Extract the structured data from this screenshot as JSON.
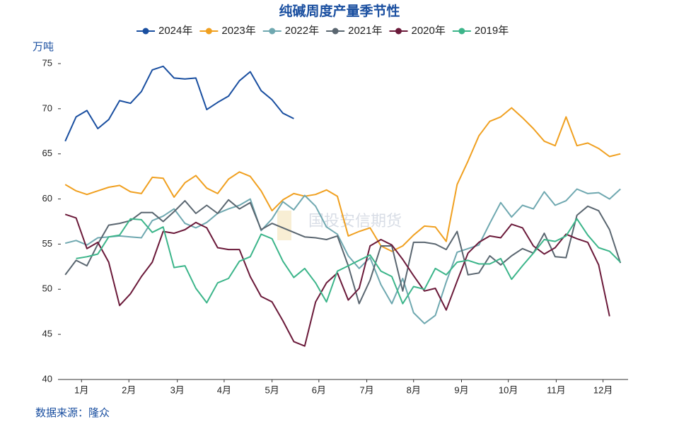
{
  "chart_data": {
    "type": "line",
    "title": "纯碱周度产量季节性",
    "y_label": "万吨",
    "source": "数据来源：隆众",
    "watermark": "国投安信期货",
    "x": [
      1,
      2,
      3,
      4,
      5,
      6,
      7,
      8,
      9,
      10,
      11,
      12,
      13,
      14,
      15,
      16,
      17,
      18,
      19,
      20,
      21,
      22,
      23,
      24,
      25,
      26,
      27,
      28,
      29,
      30,
      31,
      32,
      33,
      34,
      35,
      36,
      37,
      38,
      39,
      40,
      41,
      42,
      43,
      44,
      45,
      46,
      47,
      48,
      49,
      50,
      51,
      52
    ],
    "xlim": [
      0.6,
      52.7
    ],
    "xticks": [
      {
        "value": 2.5,
        "label": "1月"
      },
      {
        "value": 6.85,
        "label": "2月"
      },
      {
        "value": 11.3,
        "label": "3月"
      },
      {
        "value": 15.6,
        "label": "4月"
      },
      {
        "value": 20,
        "label": "5月"
      },
      {
        "value": 24.3,
        "label": "6月"
      },
      {
        "value": 28.7,
        "label": "7月"
      },
      {
        "value": 33,
        "label": "8月"
      },
      {
        "value": 37.4,
        "label": "9月"
      },
      {
        "value": 41.7,
        "label": "10月"
      },
      {
        "value": 46.1,
        "label": "11月"
      },
      {
        "value": 50.4,
        "label": "12月"
      }
    ],
    "ylim": [
      40,
      75
    ],
    "yticks": [
      40,
      45,
      50,
      55,
      60,
      65,
      70,
      75
    ],
    "legend": "top",
    "series": [
      {
        "name": "2024年",
        "color": "#1a4fa0",
        "values": [
          66.4,
          69.1,
          69.8,
          67.8,
          68.8,
          70.9,
          70.6,
          71.9,
          74.3,
          74.7,
          73.4,
          73.3,
          73.4,
          69.9,
          70.7,
          71.4,
          73.1,
          74.1,
          72.0,
          71.0,
          69.5,
          68.9,
          null,
          null,
          null,
          null,
          null,
          null,
          null,
          null,
          null,
          null,
          null,
          null,
          null,
          null,
          null,
          null,
          null,
          null,
          null,
          null,
          null,
          null,
          null,
          null,
          null,
          null,
          null,
          null,
          null,
          null
        ]
      },
      {
        "name": "2023年",
        "color": "#f0a020",
        "values": [
          61.6,
          60.9,
          60.5,
          60.9,
          61.3,
          61.5,
          60.8,
          60.6,
          62.4,
          62.3,
          60.2,
          61.8,
          62.6,
          61.2,
          60.6,
          62.2,
          63.0,
          62.5,
          60.9,
          58.7,
          59.9,
          60.6,
          60.3,
          60.5,
          61.0,
          60.3,
          55.9,
          56.4,
          56.8,
          54.8,
          54.2,
          54.8,
          56.0,
          57.0,
          56.9,
          55.3,
          61.6,
          64.2,
          67.0,
          68.6,
          69.1,
          70.1,
          69.0,
          67.8,
          66.4,
          65.9,
          69.1,
          65.9,
          66.2,
          65.6,
          64.7,
          65.0
        ]
      },
      {
        "name": "2022年",
        "color": "#6fa8b0",
        "values": [
          55.1,
          55.4,
          54.9,
          55.7,
          55.8,
          55.9,
          55.8,
          55.7,
          57.6,
          58.1,
          58.9,
          57.3,
          56.8,
          57.4,
          58.4,
          58.9,
          59.3,
          60.0,
          56.5,
          57.8,
          59.7,
          58.8,
          60.4,
          59.2,
          56.9,
          56.1,
          53.7,
          52.3,
          53.5,
          50.5,
          48.4,
          51.2,
          47.4,
          46.2,
          47.1,
          50.8,
          54.1,
          54.5,
          54.9,
          57.3,
          59.6,
          58.0,
          59.3,
          58.9,
          60.8,
          59.3,
          59.8,
          61.1,
          60.6,
          60.7,
          60.0,
          61.1
        ]
      },
      {
        "name": "2021年",
        "color": "#5a6670",
        "values": [
          51.6,
          53.2,
          52.6,
          55.0,
          57.1,
          57.3,
          57.6,
          58.5,
          58.5,
          57.5,
          58.6,
          59.8,
          58.4,
          59.3,
          58.4,
          59.9,
          58.9,
          59.6,
          56.6,
          57.3,
          56.8,
          56.3,
          55.8,
          55.7,
          55.5,
          55.9,
          52.6,
          48.4,
          51.0,
          54.8,
          54.8,
          49.8,
          55.2,
          55.2,
          55.0,
          54.4,
          56.4,
          51.6,
          51.8,
          53.7,
          52.7,
          53.7,
          54.5,
          54.0,
          56.2,
          53.6,
          53.5,
          58.2,
          59.2,
          58.7,
          56.6,
          52.9
        ]
      },
      {
        "name": "2020年",
        "color": "#6b1a3a",
        "values": [
          58.3,
          57.9,
          54.5,
          55.2,
          53.0,
          48.2,
          49.5,
          51.4,
          53.0,
          56.4,
          56.2,
          56.6,
          57.4,
          56.8,
          54.6,
          54.4,
          54.4,
          51.4,
          49.2,
          48.6,
          46.5,
          44.2,
          43.7,
          48.6,
          50.7,
          51.8,
          48.8,
          50.1,
          54.8,
          55.5,
          54.9,
          53.3,
          51.5,
          49.8,
          50.1,
          47.7,
          50.9,
          54.0,
          55.2,
          55.9,
          55.7,
          57.2,
          56.8,
          54.8,
          53.9,
          54.6,
          56.1,
          55.6,
          55.2,
          52.7,
          47.0,
          null
        ]
      },
      {
        "name": "2019年",
        "color": "#3cb58a",
        "values": [
          null,
          53.4,
          53.6,
          53.9,
          55.8,
          56.0,
          57.8,
          57.7,
          56.3,
          56.9,
          52.4,
          52.6,
          50.1,
          48.5,
          50.7,
          51.2,
          53.1,
          53.6,
          56.1,
          55.6,
          53.1,
          51.3,
          52.3,
          50.7,
          48.6,
          52.0,
          52.6,
          53.2,
          53.8,
          52.0,
          51.4,
          48.4,
          50.3,
          50.0,
          52.3,
          51.6,
          53.0,
          53.2,
          52.8,
          52.8,
          53.4,
          51.1,
          52.6,
          54.0,
          55.5,
          55.3,
          55.9,
          57.8,
          56.0,
          54.6,
          54.2,
          53.0
        ]
      }
    ]
  }
}
